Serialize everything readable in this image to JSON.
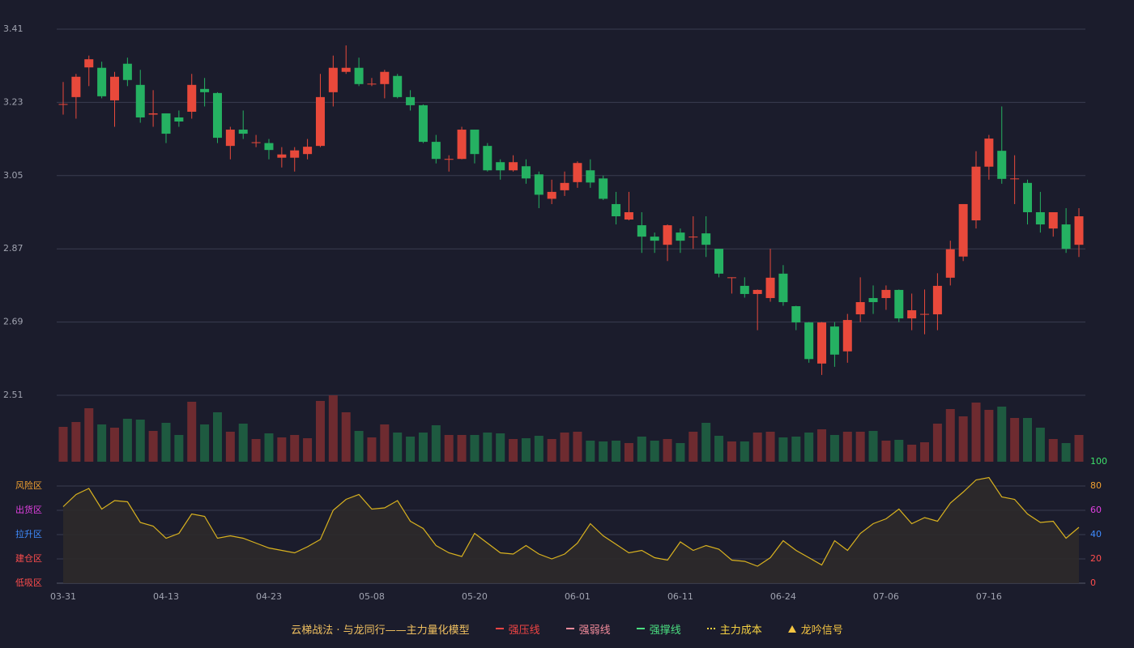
{
  "chart_data": {
    "type": "candlestick",
    "categories": [
      "03-31",
      null,
      null,
      null,
      null,
      null,
      null,
      null,
      "04-13",
      null,
      null,
      null,
      null,
      null,
      null,
      null,
      "04-23",
      null,
      null,
      null,
      null,
      null,
      null,
      null,
      "05-08",
      null,
      null,
      null,
      null,
      null,
      null,
      null,
      "05-20",
      null,
      null,
      null,
      null,
      null,
      null,
      null,
      "06-01",
      null,
      null,
      null,
      null,
      null,
      null,
      null,
      "06-11",
      null,
      null,
      null,
      null,
      null,
      null,
      null,
      "06-24",
      null,
      null,
      null,
      null,
      null,
      null,
      null,
      "07-06",
      null,
      null,
      null,
      null,
      null,
      null,
      null,
      "07-16",
      null,
      null,
      null,
      null,
      null,
      null,
      null
    ],
    "open": [
      3.224,
      3.243,
      3.316,
      3.315,
      3.235,
      3.325,
      3.273,
      3.2,
      3.203,
      3.193,
      3.207,
      3.263,
      3.253,
      3.123,
      3.163,
      3.13,
      3.13,
      3.094,
      3.094,
      3.103,
      3.123,
      3.255,
      3.305,
      3.315,
      3.274,
      3.275,
      3.295,
      3.243,
      3.223,
      3.133,
      3.089,
      3.091,
      3.163,
      3.123,
      3.083,
      3.063,
      3.073,
      3.053,
      2.993,
      3.014,
      3.034,
      3.063,
      3.043,
      2.98,
      2.942,
      2.928,
      2.9,
      2.88,
      2.91,
      2.898,
      2.908,
      2.87,
      2.798,
      2.779,
      2.759,
      2.749,
      2.809,
      2.729,
      2.689,
      2.588,
      2.679,
      2.618,
      2.709,
      2.749,
      2.749,
      2.769,
      2.699,
      2.708,
      2.709,
      2.799,
      2.851,
      2.94,
      3.072,
      3.111,
      3.041,
      3.032,
      2.96,
      2.92,
      2.93,
      2.88
    ],
    "close": [
      3.226,
      3.293,
      3.336,
      3.245,
      3.293,
      3.285,
      3.193,
      3.203,
      3.153,
      3.183,
      3.273,
      3.255,
      3.143,
      3.163,
      3.153,
      3.132,
      3.113,
      3.102,
      3.112,
      3.121,
      3.243,
      3.315,
      3.315,
      3.275,
      3.276,
      3.305,
      3.243,
      3.223,
      3.133,
      3.091,
      3.091,
      3.163,
      3.103,
      3.063,
      3.063,
      3.083,
      3.043,
      3.003,
      3.01,
      3.032,
      3.081,
      3.033,
      2.993,
      2.95,
      2.96,
      2.9,
      2.89,
      2.928,
      2.89,
      2.9,
      2.88,
      2.809,
      2.8,
      2.759,
      2.769,
      2.799,
      2.739,
      2.689,
      2.599,
      2.689,
      2.61,
      2.695,
      2.739,
      2.739,
      2.769,
      2.699,
      2.719,
      2.71,
      2.779,
      2.869,
      2.98,
      3.072,
      3.141,
      3.042,
      3.043,
      2.96,
      2.93,
      2.96,
      2.87,
      2.95
    ],
    "high": [
      3.28,
      3.3,
      3.345,
      3.33,
      3.305,
      3.34,
      3.31,
      3.26,
      3.203,
      3.21,
      3.3,
      3.29,
      3.255,
      3.17,
      3.21,
      3.15,
      3.14,
      3.12,
      3.12,
      3.14,
      3.3,
      3.345,
      3.37,
      3.34,
      3.29,
      3.31,
      3.3,
      3.26,
      3.225,
      3.15,
      3.1,
      3.17,
      3.163,
      3.13,
      3.09,
      3.1,
      3.09,
      3.06,
      3.04,
      3.06,
      3.085,
      3.09,
      3.05,
      3.01,
      3.01,
      2.96,
      2.91,
      2.93,
      2.92,
      2.95,
      2.95,
      2.87,
      2.8,
      2.8,
      2.77,
      2.87,
      2.83,
      2.73,
      2.69,
      2.69,
      2.69,
      2.71,
      2.8,
      2.78,
      2.78,
      2.77,
      2.76,
      2.77,
      2.81,
      2.89,
      2.98,
      3.11,
      3.15,
      3.22,
      3.1,
      3.04,
      3.01,
      2.96,
      2.97,
      2.97
    ],
    "low": [
      3.2,
      3.19,
      3.27,
      3.24,
      3.17,
      3.27,
      3.18,
      3.17,
      3.13,
      3.17,
      3.19,
      3.22,
      3.13,
      3.09,
      3.14,
      3.12,
      3.09,
      3.07,
      3.06,
      3.09,
      3.12,
      3.22,
      3.3,
      3.27,
      3.27,
      3.24,
      3.24,
      3.21,
      3.13,
      3.08,
      3.06,
      3.09,
      3.08,
      3.06,
      3.04,
      3.06,
      3.03,
      2.97,
      2.98,
      3.0,
      3.02,
      3.02,
      2.99,
      2.93,
      2.94,
      2.86,
      2.86,
      2.84,
      2.86,
      2.87,
      2.85,
      2.8,
      2.76,
      2.75,
      2.67,
      2.74,
      2.73,
      2.67,
      2.59,
      2.56,
      2.58,
      2.59,
      2.69,
      2.71,
      2.72,
      2.69,
      2.67,
      2.66,
      2.67,
      2.78,
      2.84,
      2.92,
      3.04,
      3.03,
      2.98,
      2.93,
      2.91,
      2.9,
      2.86,
      2.85
    ],
    "up_color": "#e8493b",
    "down_color": "#25b162",
    "ylim": [
      2.51,
      3.41
    ],
    "yticks": [
      3.41,
      3.23,
      3.05,
      2.87,
      2.69,
      2.51
    ],
    "grid": true,
    "volume": {
      "values": [
        43,
        49,
        66,
        46,
        42,
        53,
        52,
        38,
        48,
        33,
        74,
        46,
        61,
        37,
        47,
        28,
        35,
        30,
        33,
        29,
        75,
        82,
        61,
        38,
        30,
        46,
        36,
        31,
        36,
        45,
        33,
        33,
        33,
        36,
        35,
        28,
        29,
        32,
        28,
        36,
        37,
        26,
        25,
        26,
        23,
        31,
        26,
        28,
        23,
        37,
        48,
        32,
        25,
        25,
        36,
        37,
        30,
        31,
        36,
        40,
        33,
        37,
        37,
        38,
        26,
        27,
        21,
        24,
        47,
        65,
        56,
        73,
        64,
        68,
        54,
        54,
        42,
        28,
        23,
        33
      ],
      "up_color": "#6e2b30",
      "down_color": "#1e5a40"
    },
    "oscillator": {
      "values": [
        63,
        73,
        78,
        61,
        68,
        67,
        50,
        47,
        37,
        41,
        57,
        55,
        37,
        39,
        37,
        33,
        29,
        27,
        25,
        30,
        36,
        60,
        69,
        73,
        61,
        62,
        68,
        51,
        45,
        31,
        25,
        22,
        41,
        33,
        25,
        24,
        31,
        24,
        20,
        24,
        33,
        49,
        39,
        32,
        25,
        27,
        21,
        19,
        34,
        27,
        31,
        28,
        19,
        18,
        14,
        21,
        35,
        27,
        21,
        15,
        35,
        27,
        41,
        49,
        53,
        61,
        49,
        54,
        51,
        66,
        75,
        85,
        87,
        71,
        69,
        57,
        50,
        51,
        37,
        46
      ],
      "color": "#d9b21f",
      "fill": "#2e2a2a",
      "y2lim": [
        0,
        100
      ],
      "y2ticks": [
        100,
        80,
        60,
        40,
        20,
        0
      ],
      "tick_colors": [
        "#3ee06b",
        "#f0a030",
        "#e040e0",
        "#3f8cff",
        "#ff4d4d",
        "#ff4d4d"
      ],
      "zones": [
        {
          "label": "风险区",
          "color": "#f0a030"
        },
        {
          "label": "出货区",
          "color": "#e040e0"
        },
        {
          "label": "拉升区",
          "color": "#3f8cff"
        },
        {
          "label": "建仓区",
          "color": "#ff4d4d"
        },
        {
          "label": "低吸区",
          "color": "#ff4d4d"
        }
      ]
    },
    "legend": {
      "title": "云梯战法 · 与龙同行——主力量化模型",
      "title_color": "#f0c060",
      "items": [
        {
          "name": "强压线",
          "color": "#ef4444",
          "style": "solid"
        },
        {
          "name": "强弱线",
          "color": "#f28b9b",
          "style": "dashed"
        },
        {
          "name": "强撑线",
          "color": "#4ade80",
          "style": "solid"
        },
        {
          "name": "主力成本",
          "color": "#f5d142",
          "style": "dotted"
        },
        {
          "name": "龙吟信号",
          "color": "#f5c542",
          "style": "triangle"
        }
      ]
    }
  }
}
